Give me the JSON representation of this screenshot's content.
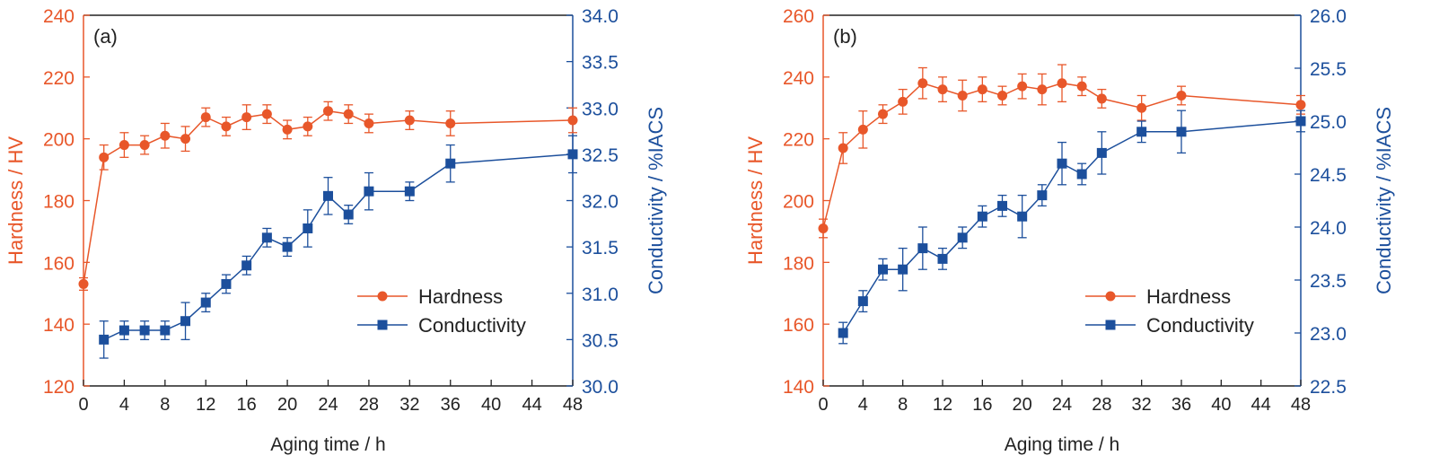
{
  "colors": {
    "hardness": "#e8572a",
    "conductivity": "#1c4f9c",
    "axis": "#222222"
  },
  "chart_data": [
    {
      "type": "line",
      "panel_label": "(a)",
      "xlabel": "Aging time / h",
      "ylabel_left": "Hardness / HV",
      "ylabel_right": "Conductivity / %IACS",
      "xlim": [
        0,
        48
      ],
      "x_ticks": [
        "0",
        "4",
        "8",
        "12",
        "16",
        "20",
        "24",
        "28",
        "32",
        "36",
        "40",
        "44",
        "48"
      ],
      "ylim_left": [
        120,
        240
      ],
      "y_left_ticks": [
        "120",
        "140",
        "160",
        "180",
        "200",
        "220",
        "240"
      ],
      "ylim_right": [
        30.0,
        34.0
      ],
      "y_right_ticks": [
        "30.0",
        "30.5",
        "31.0",
        "31.5",
        "32.0",
        "32.5",
        "33.0",
        "33.5",
        "34.0"
      ],
      "legend_position": "lower-right",
      "series": [
        {
          "name": "Hardness",
          "axis": "left",
          "marker": "circle",
          "x": [
            0,
            2,
            4,
            6,
            8,
            10,
            12,
            14,
            16,
            18,
            20,
            22,
            24,
            26,
            28,
            32,
            36,
            48
          ],
          "y": [
            153,
            194,
            198,
            198,
            201,
            200,
            207,
            204,
            207,
            208,
            203,
            204,
            209,
            208,
            205,
            206,
            205,
            206
          ],
          "err": [
            2,
            4,
            4,
            3,
            4,
            4,
            3,
            3,
            4,
            3,
            3,
            3,
            3,
            3,
            3,
            3,
            4,
            4
          ]
        },
        {
          "name": "Conductivity",
          "axis": "right",
          "marker": "square",
          "x": [
            2,
            4,
            6,
            8,
            10,
            12,
            14,
            16,
            18,
            20,
            22,
            24,
            26,
            28,
            32,
            36,
            48
          ],
          "y": [
            30.5,
            30.6,
            30.6,
            30.6,
            30.7,
            30.9,
            31.1,
            31.3,
            31.6,
            31.5,
            31.7,
            32.05,
            31.85,
            32.1,
            32.1,
            32.4,
            32.5
          ],
          "err": [
            0.2,
            0.1,
            0.1,
            0.1,
            0.2,
            0.1,
            0.1,
            0.1,
            0.1,
            0.1,
            0.2,
            0.2,
            0.1,
            0.2,
            0.1,
            0.2,
            0.2
          ]
        }
      ]
    },
    {
      "type": "line",
      "panel_label": "(b)",
      "xlabel": "Aging time / h",
      "ylabel_left": "Hardness / HV",
      "ylabel_right": "Conductivity / %IACS",
      "xlim": [
        0,
        48
      ],
      "x_ticks": [
        "0",
        "4",
        "8",
        "12",
        "16",
        "20",
        "24",
        "28",
        "32",
        "36",
        "40",
        "44",
        "48"
      ],
      "ylim_left": [
        140,
        260
      ],
      "y_left_ticks": [
        "140",
        "160",
        "180",
        "200",
        "220",
        "240",
        "260"
      ],
      "ylim_right": [
        22.5,
        26.0
      ],
      "y_right_ticks": [
        "22.5",
        "23.0",
        "23.5",
        "24.0",
        "24.5",
        "25.0",
        "25.5",
        "26.0"
      ],
      "legend_position": "lower-right",
      "series": [
        {
          "name": "Hardness",
          "axis": "left",
          "marker": "circle",
          "x": [
            0,
            2,
            4,
            6,
            8,
            10,
            12,
            14,
            16,
            18,
            20,
            22,
            24,
            26,
            28,
            32,
            36,
            48
          ],
          "y": [
            191,
            217,
            223,
            228,
            232,
            238,
            236,
            234,
            236,
            234,
            237,
            236,
            238,
            237,
            233,
            230,
            234,
            231
          ],
          "err": [
            3,
            5,
            6,
            3,
            4,
            5,
            4,
            5,
            4,
            3,
            4,
            5,
            6,
            3,
            3,
            4,
            3,
            3
          ]
        },
        {
          "name": "Conductivity",
          "axis": "right",
          "marker": "square",
          "x": [
            2,
            4,
            6,
            8,
            10,
            12,
            14,
            16,
            18,
            20,
            22,
            24,
            26,
            28,
            32,
            36,
            48
          ],
          "y": [
            23.0,
            23.3,
            23.6,
            23.6,
            23.8,
            23.7,
            23.9,
            24.1,
            24.2,
            24.1,
            24.3,
            24.6,
            24.5,
            24.7,
            24.9,
            24.9,
            25.0
          ],
          "err": [
            0.1,
            0.1,
            0.1,
            0.2,
            0.2,
            0.1,
            0.1,
            0.1,
            0.1,
            0.2,
            0.1,
            0.2,
            0.1,
            0.2,
            0.1,
            0.2,
            0.1
          ]
        }
      ]
    }
  ]
}
